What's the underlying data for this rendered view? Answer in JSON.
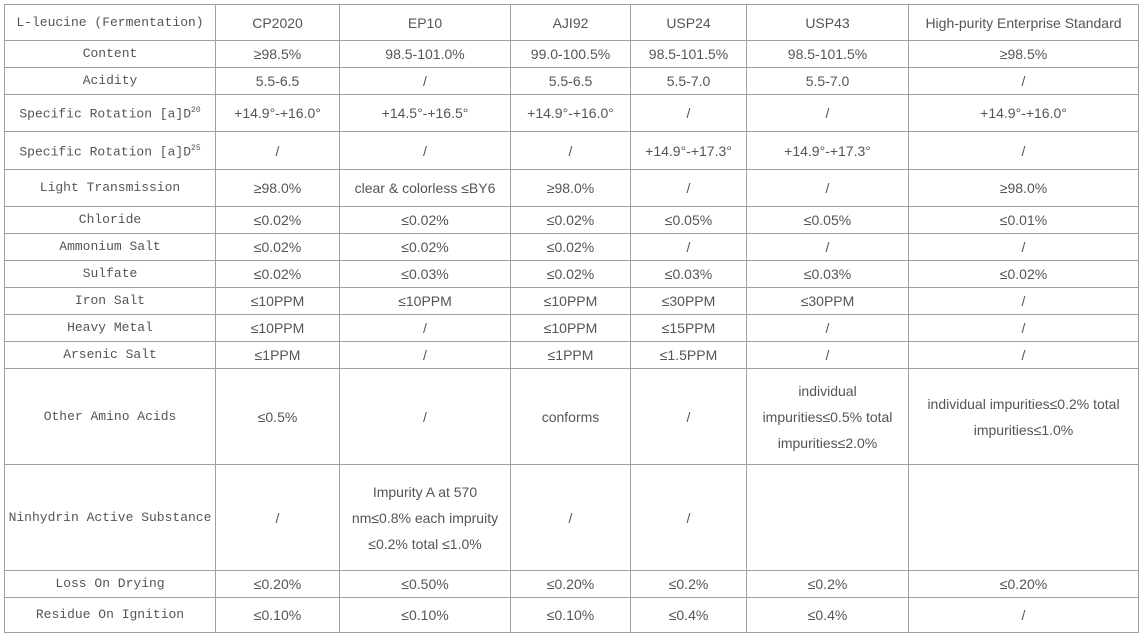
{
  "table": {
    "header": [
      "L-leucine (Fermentation)",
      "CP2020",
      "EP10",
      "AJI92",
      "USP24",
      "USP43",
      "High-purity Enterprise Standard"
    ],
    "rows": [
      [
        "Content",
        "≥98.5%",
        "98.5-101.0%",
        "99.0-100.5%",
        "98.5-101.5%",
        "98.5-101.5%",
        "≥98.5%"
      ],
      [
        "Acidity",
        "5.5-6.5",
        "/",
        "5.5-6.5",
        "5.5-7.0",
        "5.5-7.0",
        "/"
      ],
      [
        {
          "text": "Specific Rotation [a]D",
          "sup": "20"
        },
        "+14.9°-+16.0°",
        "+14.5°-+16.5°",
        "+14.9°-+16.0°",
        "/",
        "/",
        "+14.9°-+16.0°"
      ],
      [
        {
          "text": "Specific Rotation [a]D",
          "sup": "25"
        },
        "/",
        "/",
        "/",
        "+14.9°-+17.3°",
        "+14.9°-+17.3°",
        "/"
      ],
      [
        "Light Transmission",
        "≥98.0%",
        "clear & colorless ≤BY6",
        "≥98.0%",
        "/",
        "/",
        "≥98.0%"
      ],
      [
        "Chloride",
        "≤0.02%",
        "≤0.02%",
        "≤0.02%",
        "≤0.05%",
        "≤0.05%",
        "≤0.01%"
      ],
      [
        "Ammonium Salt",
        "≤0.02%",
        "≤0.02%",
        "≤0.02%",
        "/",
        "/",
        "/"
      ],
      [
        "Sulfate",
        "≤0.02%",
        "≤0.03%",
        "≤0.02%",
        "≤0.03%",
        "≤0.03%",
        "≤0.02%"
      ],
      [
        "Iron Salt",
        "≤10PPM",
        "≤10PPM",
        "≤10PPM",
        "≤30PPM",
        "≤30PPM",
        "/"
      ],
      [
        "Heavy Metal",
        "≤10PPM",
        "/",
        "≤10PPM",
        "≤15PPM",
        "/",
        "/"
      ],
      [
        "Arsenic Salt",
        "≤1PPM",
        "/",
        "≤1PPM",
        "≤1.5PPM",
        "/",
        "/"
      ],
      [
        "Other Amino Acids",
        "≤0.5%",
        "/",
        "conforms",
        "/",
        "individual impurities≤0.5% total impurities≤2.0%",
        "individual impurities≤0.2% total impurities≤1.0%"
      ],
      [
        "Ninhydrin Active Substance",
        "/",
        "Impurity A at 570 nm≤0.8% each impruity ≤0.2% total ≤1.0%",
        "/",
        "/",
        null,
        null
      ],
      [
        "Loss On Drying",
        "≤0.20%",
        "≤0.50%",
        "≤0.20%",
        "≤0.2%",
        "≤0.2%",
        "≤0.20%"
      ],
      [
        "Residue On Ignition",
        "≤0.10%",
        "≤0.10%",
        "≤0.10%",
        "≤0.4%",
        "≤0.4%",
        "/"
      ]
    ]
  }
}
